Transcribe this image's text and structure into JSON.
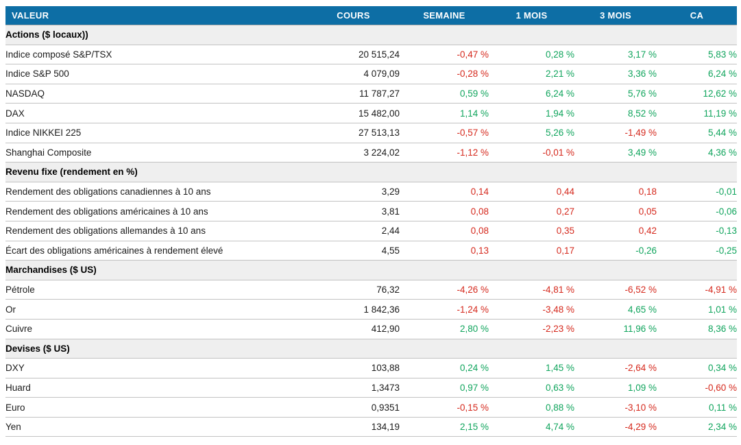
{
  "colors": {
    "header_bg": "#0D6EA5",
    "header_text": "#FFFFFF",
    "section_bg": "#EFEFEF",
    "positive": "#0FA45C",
    "negative": "#D5281C",
    "row_border": "#C2C2C2",
    "section_border": "#A8A8A8",
    "text": "#1A1A1A"
  },
  "table": {
    "columns": [
      "VALEUR",
      "COURS",
      "SEMAINE",
      "1 MOIS",
      "3 MOIS",
      "CA"
    ],
    "sections": [
      {
        "title": "Actions ($ locaux))",
        "rows": [
          {
            "label": "Indice composé S&P/TSX",
            "cours": "20 515,24",
            "changes": [
              {
                "text": "-0,47 %",
                "color": "negative"
              },
              {
                "text": "0,28 %",
                "color": "positive"
              },
              {
                "text": "3,17 %",
                "color": "positive"
              },
              {
                "text": "5,83 %",
                "color": "positive"
              }
            ]
          },
          {
            "label": "Indice S&P 500",
            "cours": "4 079,09",
            "changes": [
              {
                "text": "-0,28 %",
                "color": "negative"
              },
              {
                "text": "2,21 %",
                "color": "positive"
              },
              {
                "text": "3,36 %",
                "color": "positive"
              },
              {
                "text": "6,24 %",
                "color": "positive"
              }
            ]
          },
          {
            "label": "NASDAQ",
            "cours": "11 787,27",
            "changes": [
              {
                "text": "0,59 %",
                "color": "positive"
              },
              {
                "text": "6,24 %",
                "color": "positive"
              },
              {
                "text": "5,76 %",
                "color": "positive"
              },
              {
                "text": "12,62 %",
                "color": "positive"
              }
            ]
          },
          {
            "label": "DAX",
            "cours": "15 482,00",
            "changes": [
              {
                "text": "1,14 %",
                "color": "positive"
              },
              {
                "text": "1,94 %",
                "color": "positive"
              },
              {
                "text": "8,52 %",
                "color": "positive"
              },
              {
                "text": "11,19 %",
                "color": "positive"
              }
            ]
          },
          {
            "label": "Indice NIKKEI 225",
            "cours": "27 513,13",
            "changes": [
              {
                "text": "-0,57 %",
                "color": "negative"
              },
              {
                "text": "5,26 %",
                "color": "positive"
              },
              {
                "text": "-1,49 %",
                "color": "negative"
              },
              {
                "text": "5,44 %",
                "color": "positive"
              }
            ]
          },
          {
            "label": "Shanghai Composite",
            "cours": "3 224,02",
            "changes": [
              {
                "text": "-1,12 %",
                "color": "negative"
              },
              {
                "text": "-0,01 %",
                "color": "negative"
              },
              {
                "text": "3,49 %",
                "color": "positive"
              },
              {
                "text": "4,36 %",
                "color": "positive"
              }
            ]
          }
        ]
      },
      {
        "title": "Revenu fixe (rendement en %)",
        "rows": [
          {
            "label": "Rendement des obligations canadiennes à 10 ans",
            "cours": "3,29",
            "changes": [
              {
                "text": "0,14",
                "color": "negative"
              },
              {
                "text": "0,44",
                "color": "negative"
              },
              {
                "text": "0,18",
                "color": "negative"
              },
              {
                "text": "-0,01",
                "color": "positive"
              }
            ]
          },
          {
            "label": "Rendement des obligations américaines à 10 ans",
            "cours": "3,81",
            "changes": [
              {
                "text": "0,08",
                "color": "negative"
              },
              {
                "text": "0,27",
                "color": "negative"
              },
              {
                "text": "0,05",
                "color": "negative"
              },
              {
                "text": "-0,06",
                "color": "positive"
              }
            ]
          },
          {
            "label": "Rendement des obligations allemandes à 10 ans",
            "cours": "2,44",
            "changes": [
              {
                "text": "0,08",
                "color": "negative"
              },
              {
                "text": "0,35",
                "color": "negative"
              },
              {
                "text": "0,42",
                "color": "negative"
              },
              {
                "text": "-0,13",
                "color": "positive"
              }
            ]
          },
          {
            "label": "Écart des obligations américaines à rendement élevé",
            "cours": "4,55",
            "changes": [
              {
                "text": "0,13",
                "color": "negative"
              },
              {
                "text": "0,17",
                "color": "negative"
              },
              {
                "text": "-0,26",
                "color": "positive"
              },
              {
                "text": "-0,25",
                "color": "positive"
              }
            ]
          }
        ]
      },
      {
        "title": "Marchandises ($ US)",
        "rows": [
          {
            "label": "Pétrole",
            "cours": "76,32",
            "changes": [
              {
                "text": "-4,26 %",
                "color": "negative"
              },
              {
                "text": "-4,81 %",
                "color": "negative"
              },
              {
                "text": "-6,52 %",
                "color": "negative"
              },
              {
                "text": "-4,91 %",
                "color": "negative"
              }
            ]
          },
          {
            "label": "Or",
            "cours": "1 842,36",
            "changes": [
              {
                "text": "-1,24 %",
                "color": "negative"
              },
              {
                "text": "-3,48 %",
                "color": "negative"
              },
              {
                "text": "4,65 %",
                "color": "positive"
              },
              {
                "text": "1,01 %",
                "color": "positive"
              }
            ]
          },
          {
            "label": "Cuivre",
            "cours": "412,90",
            "changes": [
              {
                "text": "2,80 %",
                "color": "positive"
              },
              {
                "text": "-2,23 %",
                "color": "negative"
              },
              {
                "text": "11,96 %",
                "color": "positive"
              },
              {
                "text": "8,36 %",
                "color": "positive"
              }
            ]
          }
        ]
      },
      {
        "title": "Devises ($ US)",
        "rows": [
          {
            "label": "DXY",
            "cours": "103,88",
            "changes": [
              {
                "text": "0,24 %",
                "color": "positive"
              },
              {
                "text": "1,45 %",
                "color": "positive"
              },
              {
                "text": "-2,64 %",
                "color": "negative"
              },
              {
                "text": "0,34 %",
                "color": "positive"
              }
            ]
          },
          {
            "label": "Huard",
            "cours": "1,3473",
            "changes": [
              {
                "text": "0,97 %",
                "color": "positive"
              },
              {
                "text": "0,63 %",
                "color": "positive"
              },
              {
                "text": "1,09 %",
                "color": "positive"
              },
              {
                "text": "-0,60 %",
                "color": "negative"
              }
            ]
          },
          {
            "label": "Euro",
            "cours": "0,9351",
            "changes": [
              {
                "text": "-0,15 %",
                "color": "negative"
              },
              {
                "text": "0,88 %",
                "color": "positive"
              },
              {
                "text": "-3,10 %",
                "color": "negative"
              },
              {
                "text": "0,11 %",
                "color": "positive"
              }
            ]
          },
          {
            "label": "Yen",
            "cours": "134,19",
            "changes": [
              {
                "text": "2,15 %",
                "color": "positive"
              },
              {
                "text": "4,74 %",
                "color": "positive"
              },
              {
                "text": "-4,29 %",
                "color": "negative"
              },
              {
                "text": "2,34 %",
                "color": "positive"
              }
            ]
          }
        ]
      }
    ]
  }
}
